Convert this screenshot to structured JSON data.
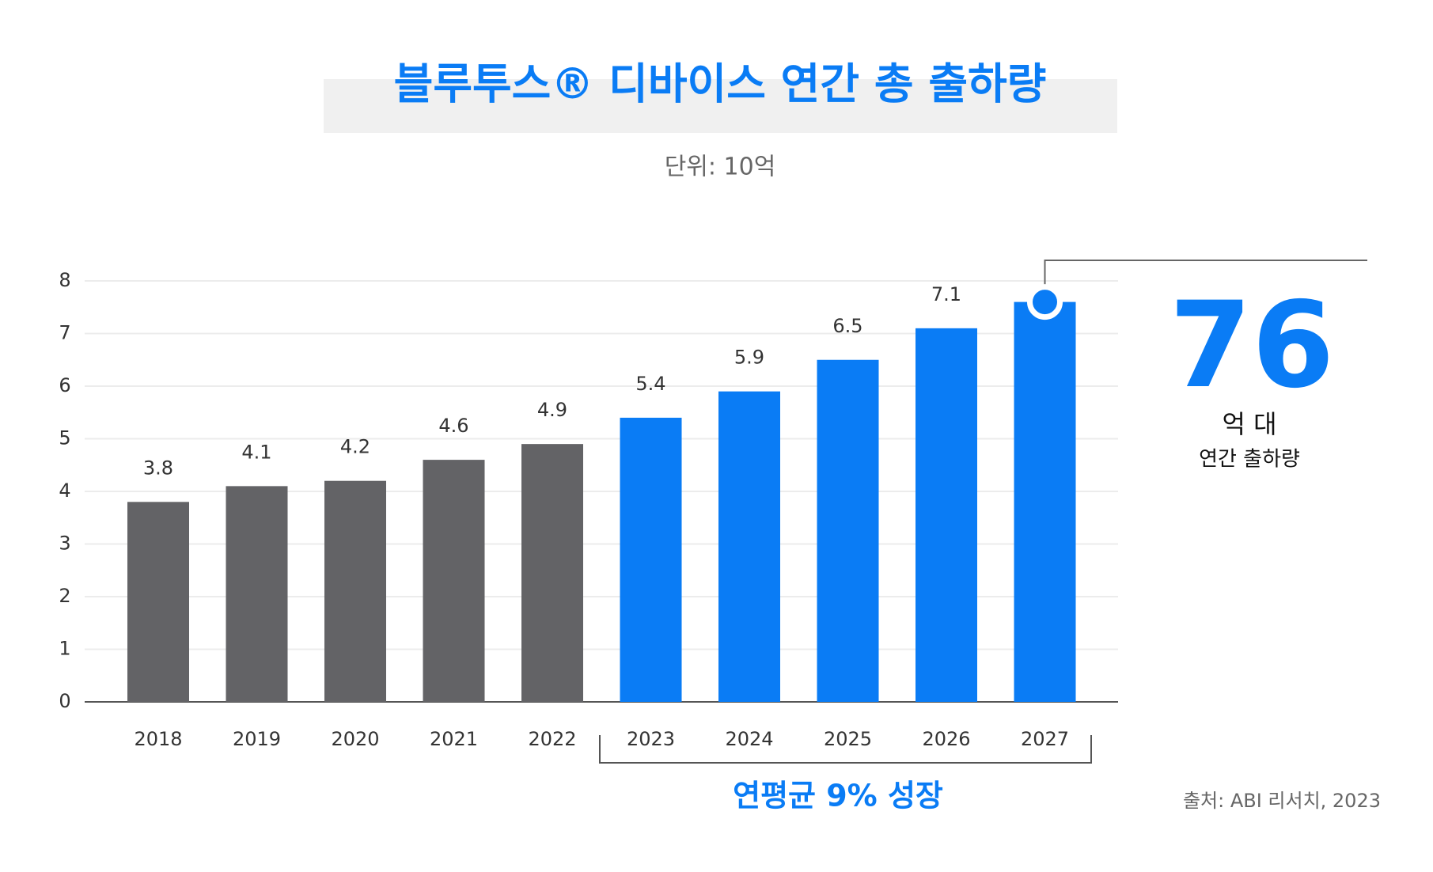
{
  "chart_data": {
    "type": "bar",
    "title": "블루투스® 디바이스 연간 총 출하량",
    "subtitle": "단위: 10억",
    "categories": [
      "2018",
      "2019",
      "2020",
      "2021",
      "2022",
      "2023",
      "2024",
      "2025",
      "2026",
      "2027"
    ],
    "values": [
      3.8,
      4.1,
      4.2,
      4.6,
      4.9,
      5.4,
      5.9,
      6.5,
      7.1,
      7.6
    ],
    "value_labels": [
      "3.8",
      "4.1",
      "4.2",
      "4.6",
      "4.9",
      "5.4",
      "5.9",
      "6.5",
      "7.1",
      null
    ],
    "colors": [
      "#636366",
      "#636366",
      "#636366",
      "#636366",
      "#636366",
      "#0a7cf5",
      "#0a7cf5",
      "#0a7cf5",
      "#0a7cf5",
      "#0a7cf5"
    ],
    "ylim": [
      0,
      8
    ],
    "yticks": [
      0,
      1,
      2,
      3,
      4,
      5,
      6,
      7,
      8
    ],
    "grid": true,
    "growth_annotation": "연평균 9% 성장",
    "callout": {
      "number": "76",
      "unit": "억 대",
      "caption": "연간 출하량"
    },
    "source": "출처: ABI 리서치, 2023"
  }
}
